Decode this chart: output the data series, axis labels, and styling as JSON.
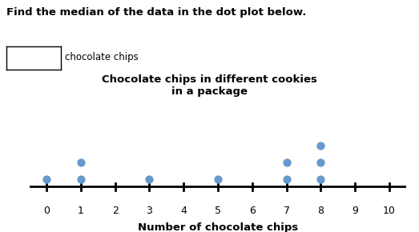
{
  "question_text": "Find the median of the data in the dot plot below.",
  "answer_box_label": "chocolate chips",
  "chart_title": "Chocolate chips in different cookies\nin a package",
  "xlabel": "Number of chocolate chips",
  "axis_min": 0,
  "axis_max": 10,
  "dot_color": "#6699CC",
  "dot_data": {
    "0": 1,
    "1": 2,
    "3": 1,
    "5": 1,
    "7": 2,
    "8": 3
  },
  "dot_size": 55,
  "background_color": "#ffffff"
}
